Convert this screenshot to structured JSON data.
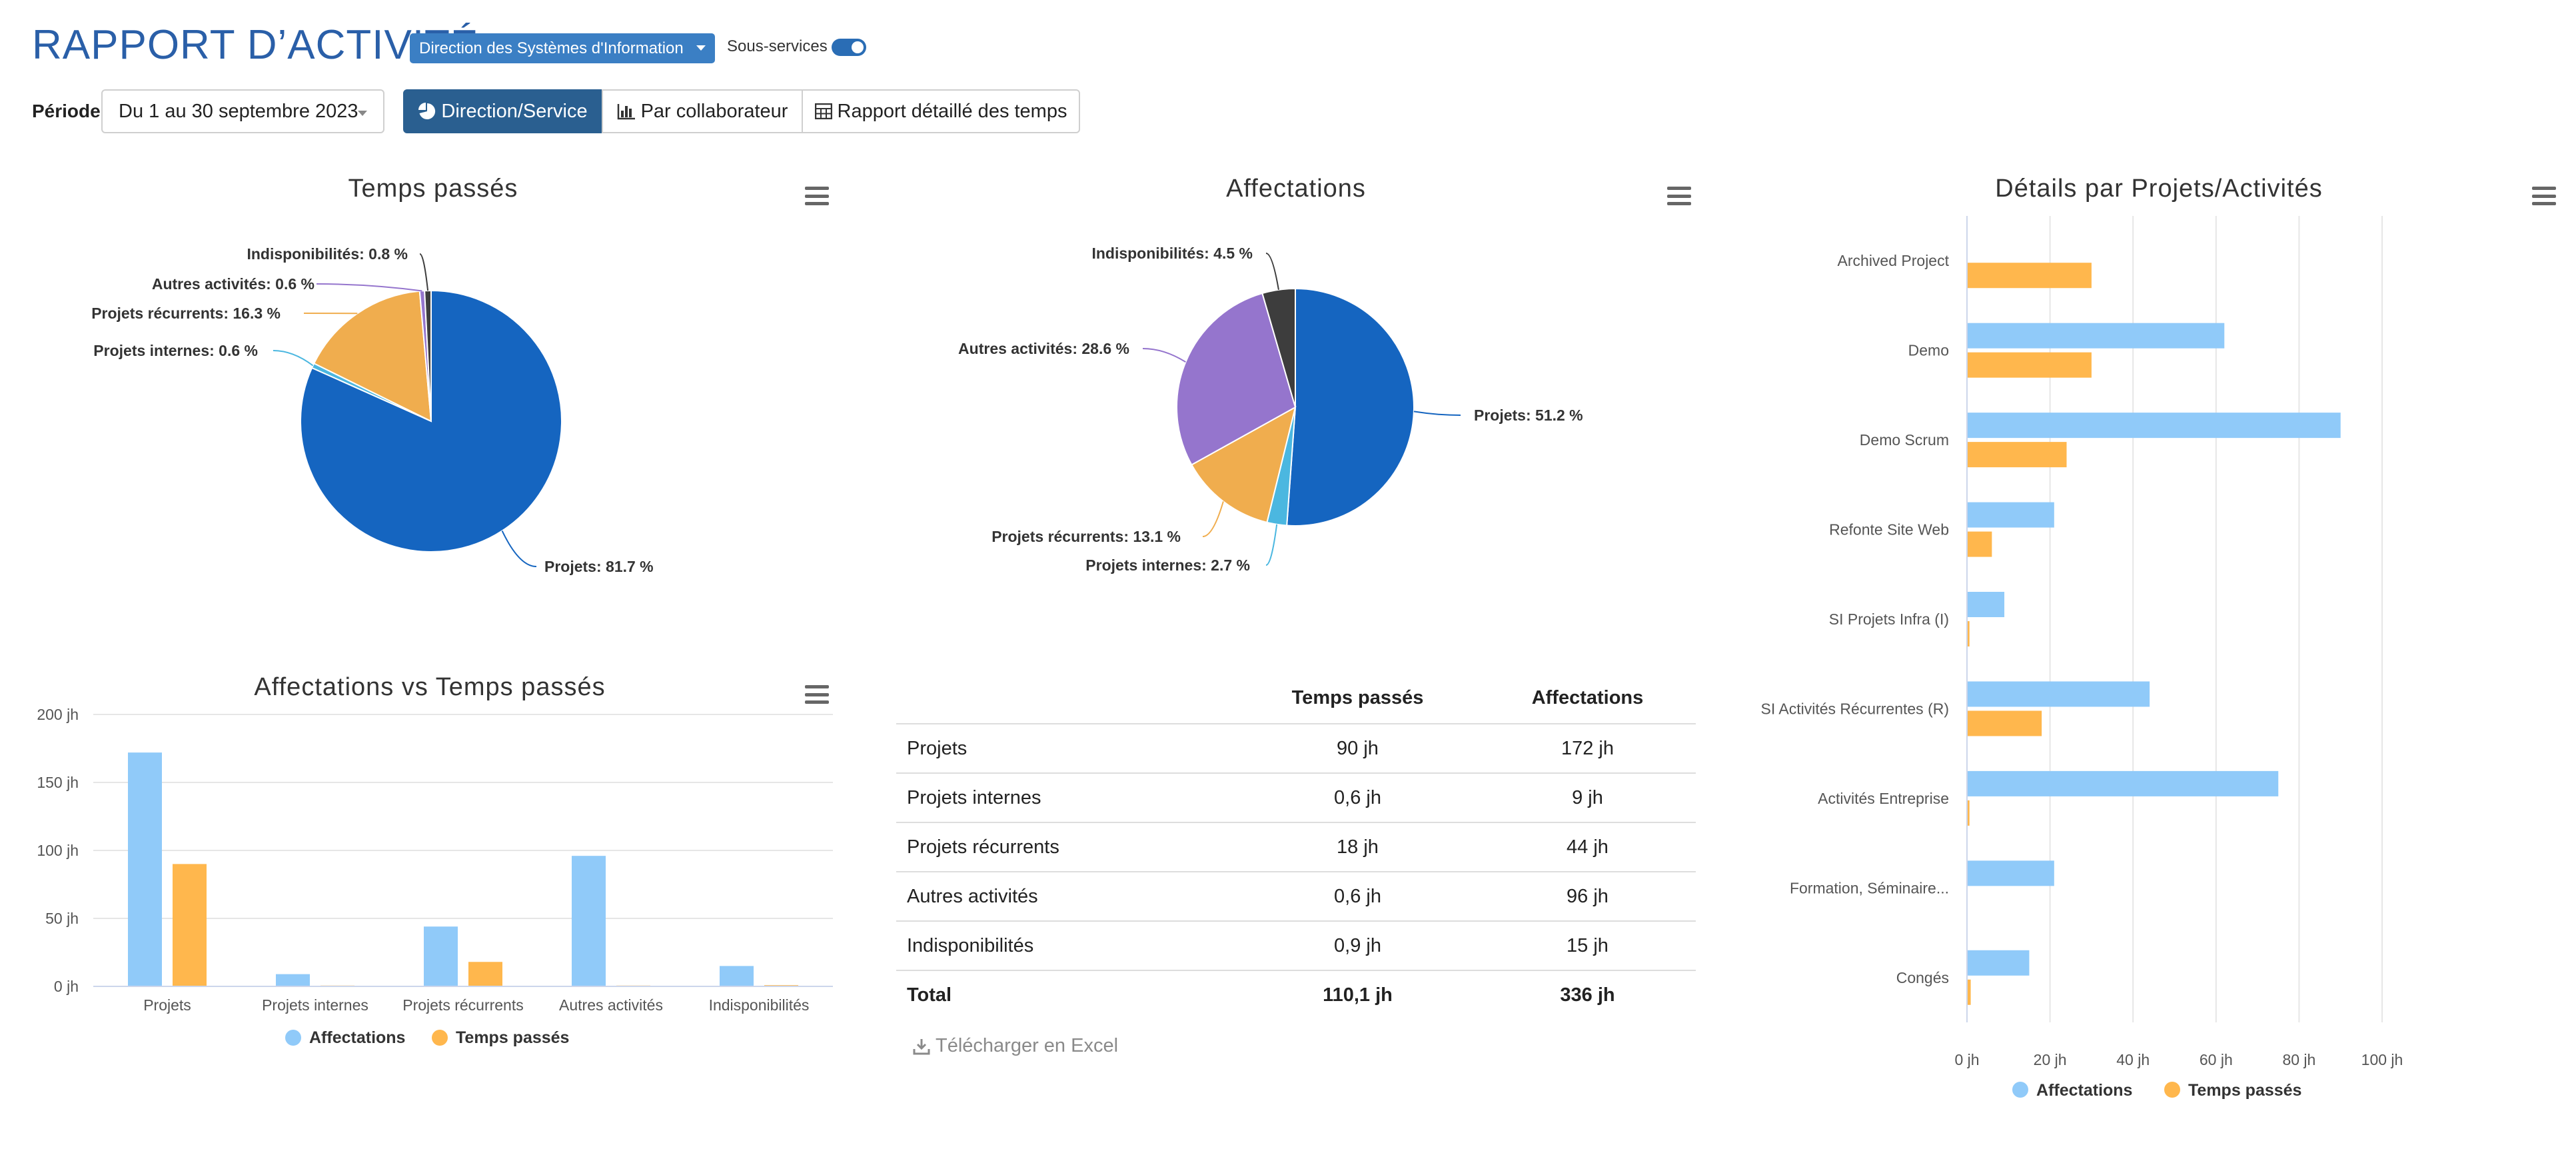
{
  "header": {
    "title": "RAPPORT D’ACTIVITÉ",
    "department": "Direction des Systèmes d'Information",
    "subservices_label": "Sous-services",
    "subservices_on": true
  },
  "toolbar": {
    "period_label": "Période",
    "period_value": "Du 1 au 30 septembre 2023",
    "tabs": [
      {
        "label": "Direction/Service",
        "active": true
      },
      {
        "label": "Par collaborateur",
        "active": false
      },
      {
        "label": "Rapport détaillé des temps",
        "active": false
      }
    ]
  },
  "colors": {
    "projets": "#1565c0",
    "projets_internes": "#4bb7e0",
    "projets_recurrents": "#f0ad4e",
    "autres_activites": "#9575cd",
    "indisponibilites": "#3d3d3d",
    "affectations": "#90caf9",
    "temps_passes": "#ffb74d",
    "accent": "#2a5f90"
  },
  "chart_data": [
    {
      "type": "pie",
      "title": "Temps passés",
      "slices": [
        {
          "label": "Projets",
          "value": 81.7,
          "display": "Projets: 81.7 %"
        },
        {
          "label": "Projets internes",
          "value": 0.6,
          "display": "Projets internes: 0.6 %"
        },
        {
          "label": "Projets récurrents",
          "value": 16.3,
          "display": "Projets récurrents: 16.3 %"
        },
        {
          "label": "Autres activités",
          "value": 0.6,
          "display": "Autres activités: 0.6 %"
        },
        {
          "label": "Indisponibilités",
          "value": 0.8,
          "display": "Indisponibilités: 0.8 %"
        }
      ]
    },
    {
      "type": "pie",
      "title": "Affectations",
      "slices": [
        {
          "label": "Projets",
          "value": 51.2,
          "display": "Projets: 51.2 %"
        },
        {
          "label": "Projets internes",
          "value": 2.7,
          "display": "Projets internes: 2.7 %"
        },
        {
          "label": "Projets récurrents",
          "value": 13.1,
          "display": "Projets récurrents: 13.1 %"
        },
        {
          "label": "Autres activités",
          "value": 28.6,
          "display": "Autres activités: 28.6 %"
        },
        {
          "label": "Indisponibilités",
          "value": 4.5,
          "display": "Indisponibilités: 4.5 %"
        }
      ]
    },
    {
      "type": "bar",
      "title": "Affectations vs Temps passés",
      "categories": [
        "Projets",
        "Projets internes",
        "Projets récurrents",
        "Autres activités",
        "Indisponibilités"
      ],
      "series": [
        {
          "name": "Affectations",
          "values": [
            172,
            9,
            44,
            96,
            15
          ]
        },
        {
          "name": "Temps passés",
          "values": [
            90,
            0.6,
            18,
            0.6,
            0.9
          ]
        }
      ],
      "yticks": [
        "0 jh",
        "50 jh",
        "100 jh",
        "150 jh",
        "200 jh"
      ],
      "ylim": [
        0,
        200
      ],
      "legend": "bottom"
    },
    {
      "type": "bar",
      "orientation": "horizontal",
      "title": "Détails par Projets/Activités",
      "categories": [
        "Archived Project",
        "Demo",
        "Demo Scrum",
        "Refonte Site Web",
        "SI Projets Infra (I)",
        "SI Activités Récurrentes (R)",
        "Activités Entreprise",
        "Formation, Séminaire...",
        "Congés"
      ],
      "series": [
        {
          "name": "Affectations",
          "values": [
            0,
            62,
            90,
            21,
            9,
            44,
            75,
            21,
            15
          ]
        },
        {
          "name": "Temps passés",
          "values": [
            30,
            30,
            24,
            6,
            0.6,
            18,
            0.6,
            0,
            0.9
          ]
        }
      ],
      "xticks": [
        "0 jh",
        "20 jh",
        "40 jh",
        "60 jh",
        "80 jh",
        "100 jh"
      ],
      "xlim": [
        0,
        100
      ],
      "legend": "bottom"
    }
  ],
  "table": {
    "headers": [
      "",
      "Temps passés",
      "Affectations"
    ],
    "rows": [
      [
        "Projets",
        "90 jh",
        "172 jh"
      ],
      [
        "Projets internes",
        "0,6 jh",
        "9 jh"
      ],
      [
        "Projets récurrents",
        "18 jh",
        "44 jh"
      ],
      [
        "Autres activités",
        "0,6 jh",
        "96 jh"
      ],
      [
        "Indisponibilités",
        "0,9 jh",
        "15 jh"
      ]
    ],
    "total": [
      "Total",
      "110,1 jh",
      "336 jh"
    ]
  },
  "excel_link": "Télécharger en Excel",
  "icons": {
    "direction": "pie-chart-icon",
    "collab": "bar-chart-icon",
    "rapport": "table-icon",
    "excel": "download-icon",
    "menu": "hamburger-menu-icon"
  }
}
